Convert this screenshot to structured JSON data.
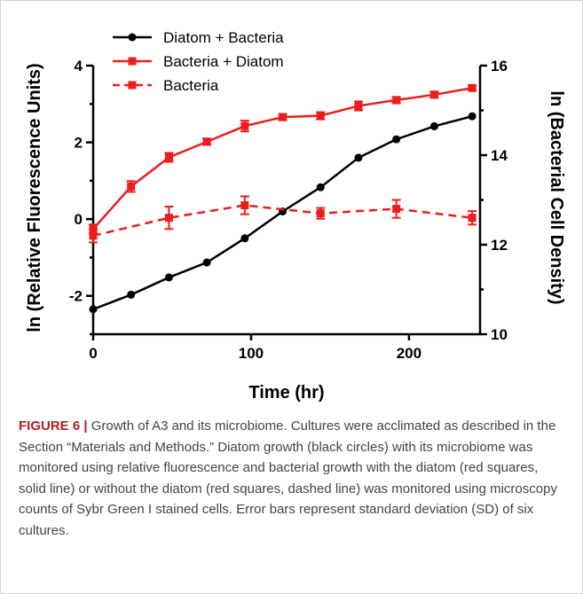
{
  "chart_data": {
    "type": "line",
    "xlabel": "Time (hr)",
    "ylabel_left": "ln (Relative Fluorescence Units)",
    "ylabel_right": "ln (Bacterial Cell Density)",
    "xlim": [
      0,
      245
    ],
    "ylim_left": [
      -3,
      4
    ],
    "ylim_right": [
      10,
      16
    ],
    "x_ticks": [
      "0",
      "100",
      "200"
    ],
    "y_ticks_left": [
      "-2",
      "0",
      "2",
      "4"
    ],
    "y_ticks_right": [
      "10",
      "12",
      "14",
      "16"
    ],
    "legend_position": "top-left",
    "grid": false,
    "series": [
      {
        "name": "Diatom + Bacteria",
        "axis": "left",
        "color": "#000000",
        "marker": "circle",
        "line_style": "solid",
        "x": [
          0,
          24,
          48,
          72,
          96,
          120,
          144,
          168,
          192,
          216,
          240
        ],
        "y": [
          -2.35,
          -1.97,
          -1.52,
          -1.13,
          -0.5,
          0.2,
          0.83,
          1.6,
          2.08,
          2.42,
          2.68
        ],
        "error": []
      },
      {
        "name": "Bacteria + Diatom",
        "axis": "right",
        "color": "#ee1c1c",
        "marker": "square",
        "line_style": "solid",
        "x": [
          0,
          24,
          48,
          72,
          96,
          120,
          144,
          168,
          192,
          216,
          240
        ],
        "y": [
          12.35,
          13.3,
          13.95,
          14.3,
          14.65,
          14.85,
          14.88,
          15.1,
          15.23,
          15.35,
          15.5
        ],
        "error": [
          0.1,
          0.12,
          0.1,
          0.07,
          0.12,
          0.07,
          0.08,
          0.1,
          0.07,
          0.07,
          0.05
        ]
      },
      {
        "name": "Bacteria",
        "axis": "right",
        "color": "#ee1c1c",
        "marker": "square",
        "line_style": "dashed",
        "x": [
          0,
          48,
          96,
          144,
          192,
          240
        ],
        "y": [
          12.2,
          12.6,
          12.88,
          12.7,
          12.8,
          12.6
        ],
        "error": [
          0.15,
          0.25,
          0.2,
          0.12,
          0.2,
          0.15
        ]
      }
    ]
  },
  "caption": {
    "label": "FIGURE 6 |",
    "text": " Growth of A3 and its microbiome. Cultures were acclimated as described in the Section “Materials and Methods.” Diatom growth (black circles) with its microbiome was monitored using relative fluorescence and bacterial growth with the diatom (red squares, solid line) or without the diatom (red squares, dashed line) was monitored using microscopy counts of Sybr Green I stained cells. Error bars represent standard deviation (SD) of six cultures."
  }
}
